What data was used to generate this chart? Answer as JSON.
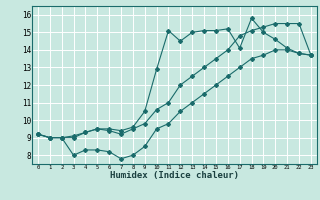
{
  "xlabel": "Humidex (Indice chaleur)",
  "bg_color": "#c8e8e0",
  "grid_color": "#ffffff",
  "line_color": "#1a6b6b",
  "xlim": [
    -0.5,
    23.5
  ],
  "ylim": [
    7.5,
    16.5
  ],
  "xticks": [
    0,
    1,
    2,
    3,
    4,
    5,
    6,
    7,
    8,
    9,
    10,
    11,
    12,
    13,
    14,
    15,
    16,
    17,
    18,
    19,
    20,
    21,
    22,
    23
  ],
  "yticks": [
    8,
    9,
    10,
    11,
    12,
    13,
    14,
    15,
    16
  ],
  "line1_x": [
    0,
    1,
    2,
    3,
    4,
    5,
    6,
    7,
    8,
    9,
    10,
    11,
    12,
    13,
    14,
    15,
    16,
    17,
    18,
    19,
    20,
    21,
    22,
    23
  ],
  "line1_y": [
    9.2,
    9.0,
    9.0,
    9.0,
    9.3,
    9.5,
    9.5,
    9.4,
    9.6,
    10.5,
    12.9,
    15.1,
    14.5,
    15.0,
    15.1,
    15.1,
    15.2,
    14.1,
    15.8,
    15.0,
    14.6,
    14.1,
    13.8,
    13.7
  ],
  "line2_x": [
    0,
    1,
    2,
    3,
    4,
    5,
    6,
    7,
    8,
    9,
    10,
    11,
    12,
    13,
    14,
    15,
    16,
    17,
    18,
    19,
    20,
    21,
    22,
    23
  ],
  "line2_y": [
    9.2,
    9.0,
    9.0,
    9.1,
    9.3,
    9.5,
    9.4,
    9.2,
    9.5,
    9.8,
    10.6,
    11.0,
    12.0,
    12.5,
    13.0,
    13.5,
    14.0,
    14.8,
    15.1,
    15.3,
    15.5,
    15.5,
    15.5,
    13.7
  ],
  "line3_x": [
    0,
    1,
    2,
    3,
    4,
    5,
    6,
    7,
    8,
    9,
    10,
    11,
    12,
    13,
    14,
    15,
    16,
    17,
    18,
    19,
    20,
    21,
    22,
    23
  ],
  "line3_y": [
    9.2,
    9.0,
    9.0,
    8.0,
    8.3,
    8.3,
    8.2,
    7.8,
    8.0,
    8.5,
    9.5,
    9.8,
    10.5,
    11.0,
    11.5,
    12.0,
    12.5,
    13.0,
    13.5,
    13.7,
    14.0,
    14.0,
    13.8,
    13.7
  ]
}
